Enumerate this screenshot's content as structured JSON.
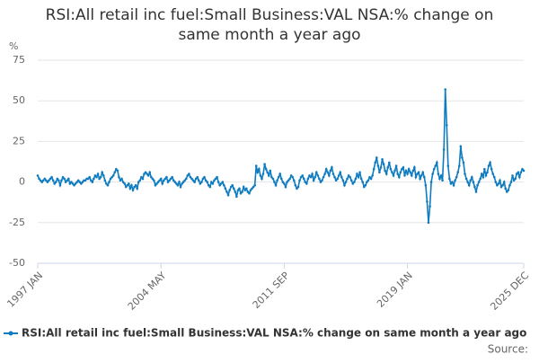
{
  "chart_data": {
    "type": "line",
    "title": "RSI:All retail inc fuel:Small Business:VAL NSA:% change on same month a year ago",
    "y_label": "%",
    "source": "Source:",
    "categories": [
      "1997 JAN",
      null,
      null,
      null,
      null,
      null,
      null,
      null,
      null,
      null,
      null,
      null,
      null,
      null,
      null,
      null,
      null,
      null,
      null,
      null,
      null,
      null,
      null,
      null,
      null,
      null,
      null,
      null,
      null,
      null,
      null,
      null,
      null,
      null,
      null,
      null,
      null,
      null,
      null,
      null,
      null,
      null,
      null,
      null,
      null,
      null,
      null,
      null,
      null,
      null,
      null,
      null,
      null,
      null,
      null,
      null,
      null,
      null,
      null,
      null,
      null,
      null,
      null,
      null,
      null,
      null,
      null,
      null,
      null,
      null,
      null,
      null,
      null,
      null,
      null,
      null,
      null,
      null,
      null,
      null,
      null,
      null,
      null,
      null,
      null,
      null,
      null,
      null,
      "2004 MAY",
      null,
      null,
      null,
      null,
      null,
      null,
      null,
      null,
      null,
      null,
      null,
      null,
      null,
      null,
      null,
      null,
      null,
      null,
      null,
      null,
      null,
      null,
      null,
      null,
      null,
      null,
      null,
      null,
      null,
      null,
      null,
      null,
      null,
      null,
      null,
      null,
      null,
      null,
      null,
      null,
      null,
      null,
      null,
      null,
      null,
      null,
      null,
      null,
      null,
      null,
      null,
      null,
      null,
      null,
      null,
      null,
      null,
      null,
      null,
      null,
      null,
      null,
      null,
      null,
      null,
      null,
      null,
      null,
      null,
      null,
      null,
      null,
      null,
      null,
      null,
      null,
      null,
      null,
      null,
      null,
      null,
      null,
      null,
      null,
      null,
      null,
      null,
      "2011 SEP",
      null,
      null,
      null,
      null,
      null,
      null,
      null,
      null,
      null,
      null,
      null,
      null,
      null,
      null,
      null,
      null,
      null,
      null,
      null,
      null,
      null,
      null,
      null,
      null,
      null,
      null,
      null,
      null,
      null,
      null,
      null,
      null,
      null,
      null,
      null,
      null,
      null,
      null,
      null,
      null,
      null,
      null,
      null,
      null,
      null,
      null,
      null,
      null,
      null,
      null,
      null,
      null,
      null,
      null,
      null,
      null,
      null,
      null,
      null,
      null,
      null,
      null,
      null,
      null,
      null,
      null,
      null,
      null,
      null,
      null,
      null,
      null,
      null,
      null,
      null,
      null,
      null,
      null,
      null,
      null,
      null,
      null,
      null,
      null,
      null,
      null,
      null,
      "2019 JAN",
      null,
      null,
      null,
      null,
      null,
      null,
      null,
      null,
      null,
      null,
      null,
      null,
      null,
      null,
      null,
      null,
      null,
      null,
      null,
      null,
      null,
      null,
      null,
      null,
      null,
      null,
      null,
      null,
      null,
      null,
      null,
      null,
      null,
      null,
      null,
      null,
      null,
      null,
      null,
      null,
      null,
      null,
      null,
      null,
      null,
      null,
      null,
      null,
      null,
      null,
      null,
      null,
      null,
      null,
      null,
      null,
      null,
      null,
      null,
      null,
      null,
      null,
      null,
      null,
      null,
      null,
      null,
      null,
      null,
      null,
      null,
      null,
      null,
      null,
      null,
      null,
      null,
      null,
      null,
      null,
      null,
      null,
      "2025 DEC"
    ],
    "series": [
      {
        "name": "RSI:All retail inc fuel:Small Business:VAL NSA:% change on same month a year ago",
        "color": "#0f7cc0",
        "values": [
          4,
          2,
          1,
          0,
          1,
          2,
          1,
          0,
          1,
          2,
          3,
          1,
          -1,
          0,
          2,
          1,
          -2,
          1,
          3,
          2,
          0,
          1,
          2,
          -1,
          0,
          -1,
          -2,
          -1,
          0,
          1,
          0,
          -1,
          0,
          1,
          1,
          2,
          2,
          3,
          1,
          0,
          2,
          4,
          3,
          5,
          2,
          3,
          6,
          4,
          1,
          -1,
          -2,
          0,
          2,
          3,
          4,
          6,
          8,
          7,
          3,
          1,
          2,
          0,
          -1,
          -3,
          -2,
          -1,
          -4,
          -2,
          -5,
          -3,
          -2,
          -4,
          0,
          1,
          3,
          2,
          5,
          6,
          5,
          4,
          6,
          3,
          2,
          1,
          -2,
          -1,
          0,
          1,
          2,
          -1,
          1,
          2,
          3,
          0,
          1,
          2,
          3,
          1,
          0,
          -1,
          -2,
          0,
          -3,
          -1,
          0,
          1,
          2,
          4,
          5,
          3,
          2,
          1,
          0,
          2,
          3,
          1,
          -1,
          0,
          2,
          3,
          1,
          0,
          -2,
          -3,
          0,
          -1,
          1,
          2,
          3,
          0,
          -2,
          -1,
          0,
          -2,
          -4,
          -6,
          -8,
          -5,
          -3,
          -2,
          -4,
          -6,
          -9,
          -5,
          -4,
          -7,
          -6,
          -3,
          -5,
          -4,
          -6,
          -7,
          -5,
          -4,
          -3,
          -2,
          10,
          6,
          8,
          4,
          2,
          5,
          11,
          8,
          6,
          4,
          7,
          3,
          2,
          0,
          -2,
          1,
          3,
          5,
          2,
          0,
          -1,
          -3,
          0,
          1,
          2,
          4,
          3,
          1,
          -2,
          -4,
          -3,
          1,
          3,
          4,
          2,
          0,
          -1,
          2,
          4,
          3,
          5,
          1,
          3,
          6,
          4,
          2,
          0,
          1,
          3,
          5,
          8,
          6,
          4,
          7,
          9,
          5,
          3,
          1,
          2,
          4,
          6,
          3,
          1,
          -2,
          0,
          2,
          4,
          3,
          1,
          -1,
          0,
          2,
          5,
          3,
          6,
          2,
          0,
          -3,
          -2,
          0,
          1,
          3,
          2,
          4,
          8,
          12,
          15,
          10,
          6,
          9,
          14,
          11,
          7,
          5,
          9,
          12,
          8,
          6,
          4,
          7,
          10,
          5,
          3,
          6,
          8,
          9,
          4,
          7,
          5,
          8,
          6,
          4,
          7,
          9,
          3,
          5,
          6,
          2,
          4,
          6,
          3,
          -2,
          -12,
          -25,
          -15,
          0,
          5,
          8,
          10,
          12,
          5,
          2,
          4,
          1,
          20,
          57,
          35,
          10,
          2,
          -1,
          0,
          -2,
          1,
          3,
          6,
          10,
          22,
          15,
          12,
          5,
          2,
          0,
          -2,
          1,
          3,
          0,
          -3,
          -6,
          -2,
          0,
          2,
          5,
          3,
          8,
          4,
          6,
          10,
          12,
          8,
          5,
          3,
          0,
          -2,
          -1,
          1,
          -3,
          -2,
          0,
          -4,
          -6,
          -5,
          -2,
          0,
          4,
          1,
          2,
          5,
          6,
          3,
          6,
          8,
          7
        ]
      }
    ],
    "ylim": [
      -50,
      75
    ],
    "yticks": [
      -50,
      -25,
      0,
      25,
      50,
      75
    ],
    "grid": true
  }
}
